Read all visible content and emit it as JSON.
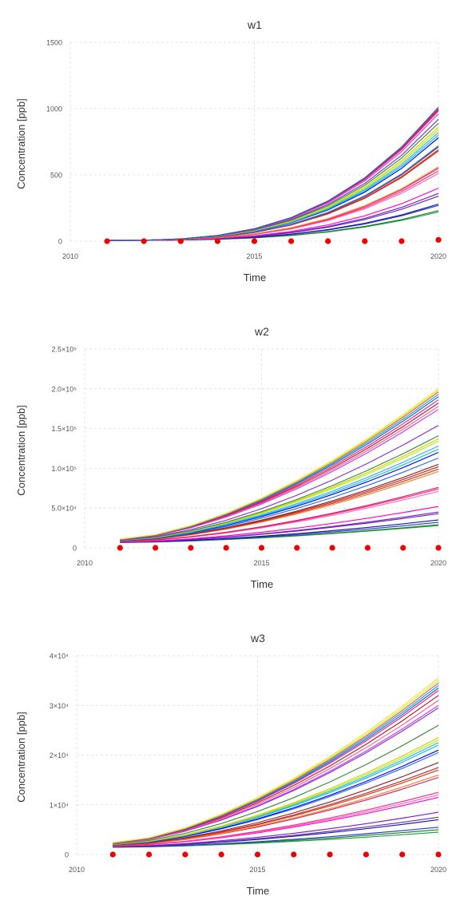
{
  "chart_data": [
    {
      "type": "line",
      "title": "w1",
      "xlabel": "Time",
      "ylabel": "Concentration [ppb]",
      "xlim": [
        2010,
        2020
      ],
      "ylim": [
        0,
        1500
      ],
      "xticks": [
        "2010",
        "2015",
        "2020"
      ],
      "yticks": [
        "0",
        "500",
        "1000",
        "1500"
      ],
      "grid": true,
      "x": [
        2011,
        2012,
        2013,
        2014,
        2015,
        2016,
        2017,
        2018,
        2019,
        2020
      ],
      "final_values": [
        1010,
        1000,
        990,
        980,
        960,
        920,
        890,
        860,
        840,
        820,
        800,
        780,
        720,
        710,
        690,
        680,
        560,
        550,
        530,
        510,
        400,
        360,
        340,
        280,
        270,
        230,
        220
      ],
      "observations": {
        "x": [
          2011,
          2012,
          2013,
          2014,
          2015,
          2016,
          2017,
          2018,
          2019,
          2020
        ],
        "y": [
          0,
          0,
          0,
          0,
          0,
          0,
          0,
          0,
          0,
          10
        ]
      }
    },
    {
      "type": "line",
      "title": "w2",
      "xlabel": "Time",
      "ylabel": "Concentration [ppb]",
      "xlim": [
        2010,
        2020
      ],
      "ylim": [
        0,
        250000
      ],
      "xticks": [
        "2010",
        "2015",
        "2020"
      ],
      "yticks": [
        "0",
        "5.0×10⁴",
        "1.0×10⁵",
        "1.5×10⁵",
        "2.0×10⁵",
        "2.5×10⁵"
      ],
      "grid": true,
      "x": [
        2011,
        2012,
        2013,
        2014,
        2015,
        2016,
        2017,
        2018,
        2019,
        2020
      ],
      "final_values": [
        200000,
        198000,
        196000,
        193000,
        190000,
        186000,
        182000,
        178000,
        174000,
        154000,
        141000,
        137000,
        134000,
        128000,
        124000,
        120000,
        113000,
        105000,
        102000,
        99000,
        96000,
        76000,
        74000,
        71000,
        52000,
        45000,
        43000,
        35000,
        32000,
        29000,
        28000
      ],
      "observations": {
        "x": [
          2011,
          2012,
          2013,
          2014,
          2015,
          2016,
          2017,
          2018,
          2019,
          2020
        ],
        "y": [
          0,
          0,
          0,
          0,
          0,
          0,
          0,
          0,
          0,
          0
        ]
      }
    },
    {
      "type": "line",
      "title": "w3",
      "xlabel": "Time",
      "ylabel": "Concentration [ppb]",
      "xlim": [
        2010,
        2020
      ],
      "ylim": [
        0,
        40000
      ],
      "xticks": [
        "2010",
        "2015",
        "2020"
      ],
      "yticks": [
        "0",
        "1×10⁴",
        "2×10⁴",
        "3×10⁴",
        "4×10⁴"
      ],
      "grid": true,
      "x": [
        2011,
        2012,
        2013,
        2014,
        2015,
        2016,
        2017,
        2018,
        2019,
        2020
      ],
      "final_values": [
        35500,
        35000,
        34500,
        34000,
        33500,
        33000,
        32000,
        31000,
        30000,
        29500,
        26000,
        23500,
        23000,
        22500,
        22000,
        21000,
        20500,
        18500,
        17500,
        17000,
        16000,
        15500,
        12500,
        12000,
        11500,
        8500,
        7500,
        7000,
        5500,
        5000,
        4500
      ],
      "observations": {
        "x": [
          2011,
          2012,
          2013,
          2014,
          2015,
          2016,
          2017,
          2018,
          2019,
          2020
        ],
        "y": [
          0,
          0,
          0,
          0,
          0,
          0,
          0,
          0,
          0,
          0
        ]
      }
    }
  ],
  "colors": {
    "series": [
      "#18a848",
      "#2a7a2a",
      "#1f3fc7",
      "#1a1aa0",
      "#6a2bb3",
      "#7a1fc4",
      "#ff00cc",
      "#ff66cc",
      "#ff2a7a",
      "#d01e6b",
      "#ff7f2a",
      "#d33d1a",
      "#c82a2a",
      "#8b2a2a",
      "#2b6fe3",
      "#0000ff",
      "#00c7cc",
      "#4ba3ff",
      "#9aff00",
      "#e3c700",
      "#3a8a3a",
      "#7a37c8",
      "#cc33ff",
      "#f06292",
      "#b71c1c",
      "#ff1493",
      "#1565c0",
      "#00acc1",
      "#ff4081",
      "#c6ff00",
      "#f4e04d",
      "#1b5e20"
    ],
    "observation": "#ee0000",
    "grid": "#dedede",
    "text": "#333333"
  }
}
